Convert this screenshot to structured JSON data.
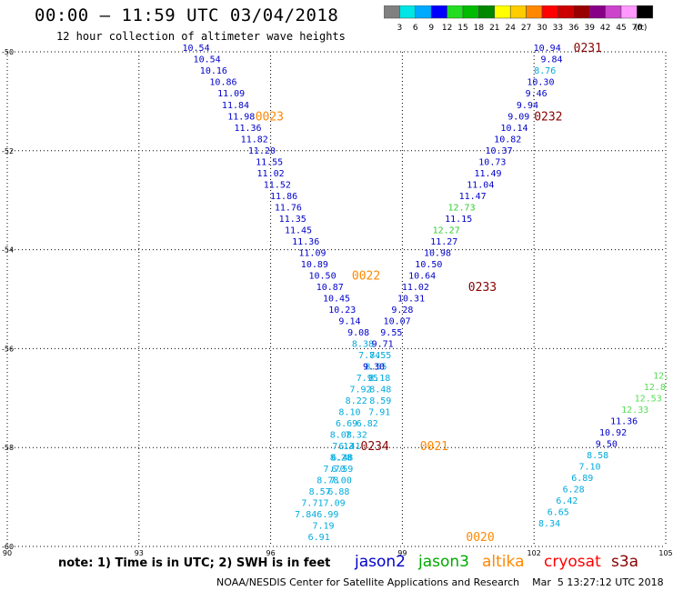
{
  "header": {
    "title": "00:00 – 11:59 UTC 03/04/2018",
    "subtitle": "12 hour collection of altimeter wave heights"
  },
  "legend": {
    "unit": "(ft)",
    "bins": [
      {
        "label": "3",
        "color": "#808080"
      },
      {
        "label": "6",
        "color": "#00e5e5"
      },
      {
        "label": "9",
        "color": "#00aaff"
      },
      {
        "label": "12",
        "color": "#0000ff"
      },
      {
        "label": "15",
        "color": "#22dd22"
      },
      {
        "label": "18",
        "color": "#00bb00"
      },
      {
        "label": "21",
        "color": "#008800"
      },
      {
        "label": "24",
        "color": "#ffff00"
      },
      {
        "label": "27",
        "color": "#ffcc00"
      },
      {
        "label": "30",
        "color": "#ff8800"
      },
      {
        "label": "33",
        "color": "#ff0000"
      },
      {
        "label": "36",
        "color": "#cc0000"
      },
      {
        "label": "39",
        "color": "#990000"
      },
      {
        "label": "42",
        "color": "#880088"
      },
      {
        "label": "45",
        "color": "#cc44cc"
      },
      {
        "label": "70",
        "color": "#ff99ff"
      },
      {
        "label": "",
        "color": "#000000"
      }
    ]
  },
  "chart_data": {
    "type": "scatter",
    "xlim": [
      90,
      105
    ],
    "ylim": [
      -60,
      -50
    ],
    "x_ticks": [
      "90",
      "93",
      "96",
      "99",
      "102",
      "105"
    ],
    "y_ticks": [
      "-50",
      "-52",
      "-54",
      "-56",
      "-58",
      "-60"
    ],
    "grid": true,
    "tracks": [
      {
        "name": "jason2",
        "points": [
          {
            "x": 94.3,
            "y": -49.93,
            "label": "10.54",
            "color": "#0000cc"
          },
          {
            "x": 94.55,
            "y": -50.16,
            "label": "10.54",
            "color": "#0000cc"
          },
          {
            "x": 94.7,
            "y": -50.39,
            "label": "10.16",
            "color": "#0000cc"
          },
          {
            "x": 94.92,
            "y": -50.62,
            "label": "10.86",
            "color": "#0000cc"
          },
          {
            "x": 95.1,
            "y": -50.85,
            "label": "11.09",
            "color": "#0000cc"
          },
          {
            "x": 95.2,
            "y": -51.08,
            "label": "11.84",
            "color": "#0000cc"
          },
          {
            "x": 95.33,
            "y": -51.31,
            "label": "11.98",
            "color": "#0000cc"
          },
          {
            "x": 95.48,
            "y": -51.54,
            "label": "11.36",
            "color": "#0000cc"
          },
          {
            "x": 95.63,
            "y": -51.77,
            "label": "11.82",
            "color": "#0000cc"
          },
          {
            "x": 95.8,
            "y": -52.0,
            "label": "11.20",
            "color": "#0000cc"
          },
          {
            "x": 95.97,
            "y": -52.23,
            "label": "11.55",
            "color": "#0000cc"
          },
          {
            "x": 96.0,
            "y": -52.46,
            "label": "11.02",
            "color": "#0000cc"
          },
          {
            "x": 96.15,
            "y": -52.69,
            "label": "11.52",
            "color": "#0000cc"
          },
          {
            "x": 96.3,
            "y": -52.92,
            "label": "11.86",
            "color": "#0000cc"
          },
          {
            "x": 96.4,
            "y": -53.15,
            "label": "11.76",
            "color": "#0000cc"
          },
          {
            "x": 96.5,
            "y": -53.38,
            "label": "11.35",
            "color": "#0000cc"
          },
          {
            "x": 96.63,
            "y": -53.61,
            "label": "11.45",
            "color": "#0000cc"
          },
          {
            "x": 96.8,
            "y": -53.84,
            "label": "11.36",
            "color": "#0000cc"
          },
          {
            "x": 96.95,
            "y": -54.07,
            "label": "11.09",
            "color": "#0000cc"
          },
          {
            "x": 97.0,
            "y": -54.3,
            "label": "10.89",
            "color": "#0000cc"
          },
          {
            "x": 97.18,
            "y": -54.53,
            "label": "10.50",
            "color": "#0000cc"
          },
          {
            "x": 97.35,
            "y": -54.76,
            "label": "10.87",
            "color": "#0000cc"
          },
          {
            "x": 97.5,
            "y": -54.99,
            "label": "10.45",
            "color": "#0000cc"
          },
          {
            "x": 97.63,
            "y": -55.22,
            "label": "10.23",
            "color": "#0000cc"
          },
          {
            "x": 97.8,
            "y": -55.45,
            "label": "9.14",
            "color": "#0000cc"
          },
          {
            "x": 98.0,
            "y": -55.68,
            "label": "9.08",
            "color": "#0000cc"
          },
          {
            "x": 98.1,
            "y": -55.91,
            "label": "8.38",
            "color": "#00aadd"
          },
          {
            "x": 98.25,
            "y": -56.14,
            "label": "7.74",
            "color": "#00aadd"
          },
          {
            "x": 98.4,
            "y": -56.37,
            "label": "8.55",
            "color": "#00aadd"
          },
          {
            "x": 98.48,
            "y": -56.6,
            "label": "8.18",
            "color": "#00aadd"
          },
          {
            "x": 98.5,
            "y": -56.83,
            "label": "8.48",
            "color": "#00aadd"
          },
          {
            "x": 98.5,
            "y": -57.06,
            "label": "8.59",
            "color": "#00aadd"
          },
          {
            "x": 98.48,
            "y": -57.29,
            "label": "7.91",
            "color": "#00aadd"
          },
          {
            "x": 98.2,
            "y": -57.52,
            "label": "6.82",
            "color": "#00aadd"
          },
          {
            "x": 97.95,
            "y": -57.75,
            "label": "7.32",
            "color": "#00aadd"
          },
          {
            "x": 97.8,
            "y": -57.98,
            "label": "6.41",
            "color": "#00aadd"
          },
          {
            "x": 97.6,
            "y": -58.21,
            "label": "8.28",
            "color": "#00aadd"
          },
          {
            "x": 97.45,
            "y": -58.44,
            "label": "7.70",
            "color": "#00aadd"
          },
          {
            "x": 97.3,
            "y": -58.67,
            "label": "8.78",
            "color": "#00aadd"
          },
          {
            "x": 97.12,
            "y": -58.9,
            "label": "8.57",
            "color": "#00aadd"
          },
          {
            "x": 96.95,
            "y": -59.13,
            "label": "7.71",
            "color": "#00aadd"
          },
          {
            "x": 96.8,
            "y": -59.36,
            "label": "7.84",
            "color": "#00aadd"
          },
          {
            "x": 102.3,
            "y": -49.93,
            "label": "10.94",
            "color": "#0000cc"
          },
          {
            "x": 102.4,
            "y": -50.16,
            "label": "9.84",
            "color": "#0000cc"
          },
          {
            "x": 102.25,
            "y": -50.39,
            "label": "8.76",
            "color": "#00aadd"
          },
          {
            "x": 102.15,
            "y": -50.62,
            "label": "10.30",
            "color": "#0000cc"
          },
          {
            "x": 102.05,
            "y": -50.85,
            "label": "9.46",
            "color": "#0000cc"
          },
          {
            "x": 101.85,
            "y": -51.08,
            "label": "9.94",
            "color": "#0000cc"
          },
          {
            "x": 101.65,
            "y": -51.31,
            "label": "9.09",
            "color": "#0000cc"
          },
          {
            "x": 101.55,
            "y": -51.54,
            "label": "10.14",
            "color": "#0000cc"
          },
          {
            "x": 101.4,
            "y": -51.77,
            "label": "10.82",
            "color": "#0000cc"
          },
          {
            "x": 101.2,
            "y": -52.0,
            "label": "10.37",
            "color": "#0000cc"
          },
          {
            "x": 101.05,
            "y": -52.23,
            "label": "10.73",
            "color": "#0000cc"
          },
          {
            "x": 100.95,
            "y": -52.46,
            "label": "11.49",
            "color": "#0000cc"
          },
          {
            "x": 100.78,
            "y": -52.69,
            "label": "11.04",
            "color": "#0000cc"
          },
          {
            "x": 100.6,
            "y": -52.92,
            "label": "11.47",
            "color": "#0000cc"
          },
          {
            "x": 100.35,
            "y": -53.15,
            "label": "12.73",
            "color": "#33cc33"
          },
          {
            "x": 100.28,
            "y": -53.38,
            "label": "11.15",
            "color": "#0000cc"
          },
          {
            "x": 100.0,
            "y": -53.61,
            "label": "12.27",
            "color": "#33cc33"
          },
          {
            "x": 99.95,
            "y": -53.84,
            "label": "11.27",
            "color": "#0000cc"
          },
          {
            "x": 99.8,
            "y": -54.07,
            "label": "10.98",
            "color": "#0000cc"
          },
          {
            "x": 99.6,
            "y": -54.3,
            "label": "10.50",
            "color": "#0000cc"
          },
          {
            "x": 99.45,
            "y": -54.53,
            "label": "10.64",
            "color": "#0000cc"
          },
          {
            "x": 99.3,
            "y": -54.76,
            "label": "11.02",
            "color": "#0000cc"
          },
          {
            "x": 99.2,
            "y": -54.99,
            "label": "10.31",
            "color": "#0000cc"
          },
          {
            "x": 99.0,
            "y": -55.22,
            "label": "9.28",
            "color": "#0000cc"
          },
          {
            "x": 98.88,
            "y": -55.45,
            "label": "10.07",
            "color": "#0000cc"
          },
          {
            "x": 98.75,
            "y": -55.68,
            "label": "9.55",
            "color": "#0000cc"
          },
          {
            "x": 98.55,
            "y": -55.91,
            "label": "9.71",
            "color": "#0000cc"
          },
          {
            "x": 98.5,
            "y": -56.14,
            "label": "8.55",
            "color": "#00aadd"
          },
          {
            "x": 98.35,
            "y": -56.37,
            "label": "9.30",
            "color": "#0000cc"
          },
          {
            "x": 98.2,
            "y": -56.6,
            "label": "7.95",
            "color": "#00aadd"
          },
          {
            "x": 98.05,
            "y": -56.83,
            "label": "7.92",
            "color": "#00aadd"
          },
          {
            "x": 97.95,
            "y": -57.06,
            "label": "8.22",
            "color": "#00aadd"
          },
          {
            "x": 97.8,
            "y": -57.29,
            "label": "8.10",
            "color": "#00aadd"
          },
          {
            "x": 97.73,
            "y": -57.52,
            "label": "6.69",
            "color": "#00aadd"
          },
          {
            "x": 97.6,
            "y": -57.75,
            "label": "8.08",
            "color": "#00aadd"
          },
          {
            "x": 97.65,
            "y": -57.98,
            "label": "7.13",
            "color": "#00aadd"
          },
          {
            "x": 97.63,
            "y": -58.21,
            "label": "6.48",
            "color": "#00aadd"
          },
          {
            "x": 97.63,
            "y": -58.44,
            "label": "6.59",
            "color": "#00aadd"
          },
          {
            "x": 97.6,
            "y": -58.67,
            "label": "7.00",
            "color": "#00aadd"
          },
          {
            "x": 97.55,
            "y": -58.9,
            "label": "6.88",
            "color": "#00aadd"
          },
          {
            "x": 97.45,
            "y": -59.13,
            "label": "7.09",
            "color": "#00aadd"
          },
          {
            "x": 97.3,
            "y": -59.36,
            "label": "6.99",
            "color": "#00aadd"
          },
          {
            "x": 97.2,
            "y": -59.59,
            "label": "7.19",
            "color": "#00aadd"
          },
          {
            "x": 97.1,
            "y": -59.82,
            "label": "6.91",
            "color": "#00aadd"
          },
          {
            "x": 104.9,
            "y": -56.55,
            "label": "12.",
            "color": "#55dd55"
          },
          {
            "x": 104.75,
            "y": -56.78,
            "label": "12.8",
            "color": "#55dd55"
          },
          {
            "x": 104.6,
            "y": -57.01,
            "label": "12.53",
            "color": "#55dd55"
          },
          {
            "x": 104.3,
            "y": -57.24,
            "label": "12.33",
            "color": "#55dd55"
          },
          {
            "x": 104.05,
            "y": -57.47,
            "label": "11.36",
            "color": "#0000cc"
          },
          {
            "x": 103.8,
            "y": -57.7,
            "label": "10.92",
            "color": "#0000cc"
          },
          {
            "x": 103.65,
            "y": -57.93,
            "label": "9.50",
            "color": "#0000cc"
          },
          {
            "x": 103.45,
            "y": -58.16,
            "label": "8.58",
            "color": "#00aadd"
          },
          {
            "x": 103.27,
            "y": -58.39,
            "label": "7.10",
            "color": "#00aadd"
          },
          {
            "x": 103.1,
            "y": -58.62,
            "label": "6.89",
            "color": "#00aadd"
          },
          {
            "x": 102.9,
            "y": -58.85,
            "label": "6.28",
            "color": "#00aadd"
          },
          {
            "x": 102.75,
            "y": -59.08,
            "label": "6.42",
            "color": "#00aadd"
          },
          {
            "x": 102.55,
            "y": -59.31,
            "label": "6.65",
            "color": "#00aadd"
          },
          {
            "x": 102.35,
            "y": -59.54,
            "label": "8.34",
            "color": "#00aadd"
          }
        ]
      }
    ],
    "time_labels": [
      {
        "x": 95.65,
        "y": -51.31,
        "label": "0023",
        "color": "#ff8800"
      },
      {
        "x": 97.85,
        "y": -54.53,
        "label": "0022",
        "color": "#ff8800"
      },
      {
        "x": 99.4,
        "y": -57.98,
        "label": "0021",
        "color": "#ff8800"
      },
      {
        "x": 100.45,
        "y": -59.82,
        "label": "0020",
        "color": "#ff8800"
      },
      {
        "x": 102.9,
        "y": -49.93,
        "label": "0231",
        "color": "#880000"
      },
      {
        "x": 102.0,
        "y": -51.31,
        "label": "0232",
        "color": "#880000"
      },
      {
        "x": 100.5,
        "y": -54.76,
        "label": "0233",
        "color": "#880000"
      },
      {
        "x": 98.05,
        "y": -57.98,
        "label": "0234",
        "color": "#880000"
      }
    ]
  },
  "footer": {
    "note": "note: 1) Time is in UTC; 2) SWH is in feet",
    "satellites": [
      {
        "name": "jason2",
        "color": "#0000cc"
      },
      {
        "name": "jason3",
        "color": "#00aa00"
      },
      {
        "name": "altika",
        "color": "#ff8800"
      },
      {
        "name": "cryosat",
        "color": "#ff0000"
      },
      {
        "name": "s3a",
        "color": "#880000"
      }
    ],
    "credit": "NOAA/NESDIS Center for Satellite Applications and Research    Mar  5 13:27:12 UTC 2018"
  }
}
